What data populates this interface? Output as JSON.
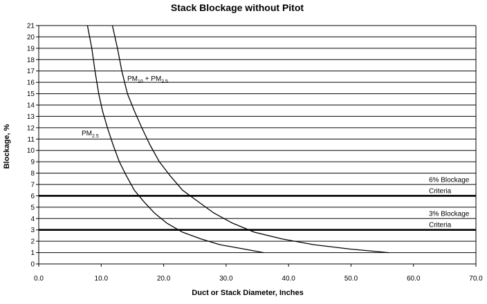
{
  "chart_data": {
    "type": "line",
    "title": "Stack Blockage without Pitot",
    "xlabel": "Duct or Stack Diameter, Inches",
    "ylabel": "Blockage, %",
    "xlim": [
      0,
      70
    ],
    "ylim": [
      0,
      21
    ],
    "xticks": [
      "0.0",
      "10.0",
      "20.0",
      "30.0",
      "40.0",
      "50.0",
      "60.0",
      "70.0"
    ],
    "yticks": [
      "0",
      "1",
      "2",
      "3",
      "4",
      "5",
      "6",
      "7",
      "8",
      "9",
      "10",
      "11",
      "12",
      "13",
      "14",
      "15",
      "16",
      "17",
      "18",
      "19",
      "20",
      "21"
    ],
    "grid": "horizontal",
    "series": [
      {
        "name": "PM2.5",
        "label_main": "PM",
        "label_sub": "2.5",
        "x": [
          7.8,
          8.5,
          9.0,
          9.6,
          10.2,
          11.0,
          11.9,
          12.9,
          14.0,
          15.3,
          16.8,
          18.5,
          20.5,
          23.0,
          26.0,
          29.0,
          33.0,
          36.0
        ],
        "y": [
          21,
          19,
          17,
          15,
          13.5,
          12,
          10.5,
          9,
          7.8,
          6.5,
          5.5,
          4.5,
          3.6,
          2.8,
          2.2,
          1.7,
          1.3,
          1.0
        ]
      },
      {
        "name": "PM10 + PM2.5",
        "label_main": "PM",
        "label_sub1": "10",
        "label_mid": " + PM",
        "label_sub2": "2.5",
        "x": [
          11.8,
          12.6,
          13.3,
          14.2,
          15.3,
          16.5,
          17.8,
          19.3,
          21.0,
          23.0,
          25.5,
          28.0,
          31.0,
          34.5,
          39.0,
          44.0,
          50.0,
          56.0
        ],
        "y": [
          21,
          19,
          17,
          15,
          13.5,
          12,
          10.5,
          9,
          7.8,
          6.5,
          5.5,
          4.5,
          3.6,
          2.8,
          2.2,
          1.7,
          1.3,
          1.0
        ]
      }
    ],
    "criteria": [
      {
        "y": 6,
        "label_line1": "6% Blockage",
        "label_line2": "Criteria"
      },
      {
        "y": 3,
        "label_line1": "3% Blockage",
        "label_line2": "Criteria"
      }
    ]
  }
}
